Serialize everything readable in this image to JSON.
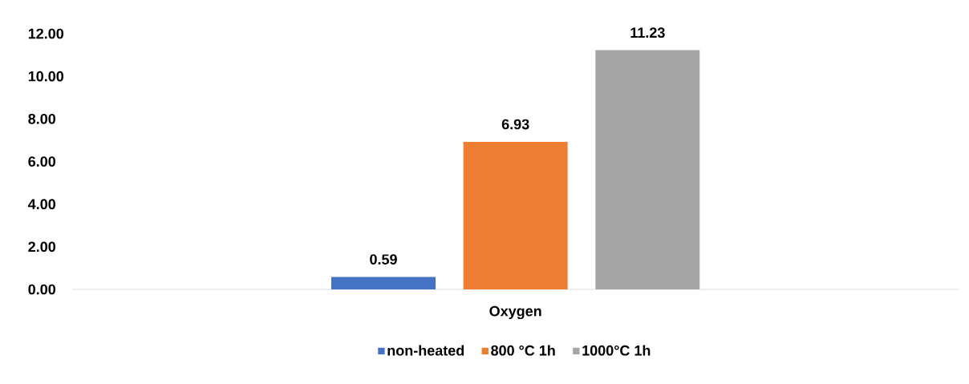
{
  "chart_data": {
    "type": "bar",
    "categories": [
      "Oxygen"
    ],
    "series": [
      {
        "name": "non-heated",
        "color": "#4472c4",
        "values": [
          0.59
        ]
      },
      {
        "name": "800 °C 1h",
        "color": "#ed7d31",
        "values": [
          6.93
        ]
      },
      {
        "name": "1000°C 1h",
        "color": "#a5a5a5",
        "values": [
          11.23
        ]
      }
    ],
    "ylim": [
      0,
      12
    ],
    "yticks": [
      {
        "value": 0,
        "label": "0.00"
      },
      {
        "value": 2,
        "label": "2.00"
      },
      {
        "value": 4,
        "label": "4.00"
      },
      {
        "value": 6,
        "label": "6.00"
      },
      {
        "value": 8,
        "label": "8.00"
      },
      {
        "value": 10,
        "label": "10.00"
      },
      {
        "value": 12,
        "label": "12.00"
      }
    ],
    "data_labels": true,
    "grid": false,
    "legend": "bottom"
  }
}
